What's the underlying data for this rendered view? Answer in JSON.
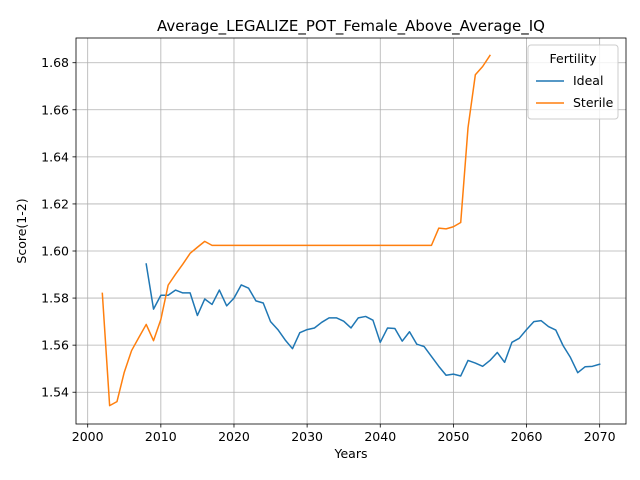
{
  "chart_data": {
    "type": "line",
    "title": "Average_LEGALIZE_POT_Female_Above_Average_IQ",
    "xlabel": "Years",
    "ylabel": "Score(1-2)",
    "xlim": [
      1998.4,
      2073.6
    ],
    "ylim": [
      1.5265,
      1.6905
    ],
    "xticks": [
      2000,
      2010,
      2020,
      2030,
      2040,
      2050,
      2060,
      2070
    ],
    "yticks": [
      1.54,
      1.56,
      1.58,
      1.6,
      1.62,
      1.64,
      1.66,
      1.68
    ],
    "ytick_labels": [
      "1.54",
      "1.56",
      "1.58",
      "1.60",
      "1.62",
      "1.64",
      "1.66",
      "1.68"
    ],
    "grid": true,
    "legend": {
      "title": "Fertility",
      "position": "top-right"
    },
    "series": [
      {
        "name": "Ideal",
        "color": "#1f77b4",
        "x": [
          2008,
          2009,
          2010,
          2011,
          2012,
          2013,
          2014,
          2015,
          2016,
          2017,
          2018,
          2019,
          2020,
          2021,
          2022,
          2023,
          2024,
          2025,
          2026,
          2027,
          2028,
          2029,
          2030,
          2031,
          2032,
          2033,
          2034,
          2035,
          2036,
          2037,
          2038,
          2039,
          2040,
          2041,
          2042,
          2043,
          2044,
          2045,
          2046,
          2047,
          2048,
          2049,
          2050,
          2051,
          2052,
          2053,
          2054,
          2055,
          2056,
          2057,
          2058,
          2059,
          2060,
          2061,
          2062,
          2063,
          2064,
          2065,
          2066,
          2067,
          2068,
          2069,
          2070
        ],
        "y": [
          1.5945,
          1.5753,
          1.5812,
          1.5812,
          1.5834,
          1.5822,
          1.5822,
          1.5726,
          1.5796,
          1.5773,
          1.5834,
          1.5767,
          1.58,
          1.5856,
          1.5842,
          1.5788,
          1.5779,
          1.57,
          1.5666,
          1.5622,
          1.5585,
          1.5653,
          1.5666,
          1.5673,
          1.5697,
          1.5716,
          1.5716,
          1.5702,
          1.5673,
          1.5716,
          1.5722,
          1.5706,
          1.5612,
          1.5673,
          1.5671,
          1.5617,
          1.5657,
          1.5604,
          1.5594,
          1.5552,
          1.551,
          1.5472,
          1.5477,
          1.5469,
          1.5535,
          1.5524,
          1.551,
          1.5535,
          1.5569,
          1.5527,
          1.5612,
          1.5629,
          1.5666,
          1.57,
          1.5704,
          1.5679,
          1.5664,
          1.5598,
          1.5548,
          1.5483,
          1.5508,
          1.551,
          1.5519
        ]
      },
      {
        "name": "Sterile",
        "color": "#ff7f0e",
        "x": [
          2002,
          2003,
          2004,
          2005,
          2006,
          2007,
          2008,
          2009,
          2010,
          2011,
          2012,
          2013,
          2014,
          2015,
          2016,
          2017,
          2018,
          2019,
          2020,
          2021,
          2022,
          2023,
          2024,
          2025,
          2026,
          2027,
          2028,
          2029,
          2030,
          2031,
          2032,
          2033,
          2034,
          2035,
          2036,
          2037,
          2038,
          2039,
          2040,
          2041,
          2042,
          2043,
          2044,
          2045,
          2046,
          2047,
          2048,
          2049,
          2050,
          2051,
          2052,
          2053,
          2054,
          2055
        ],
        "y": [
          1.582,
          1.5343,
          1.536,
          1.5485,
          1.5577,
          1.5633,
          1.5688,
          1.5619,
          1.5709,
          1.5855,
          1.5901,
          1.5944,
          1.599,
          1.6016,
          1.6041,
          1.6024,
          1.6024,
          1.6024,
          1.6024,
          1.6024,
          1.6024,
          1.6024,
          1.6024,
          1.6024,
          1.6024,
          1.6024,
          1.6024,
          1.6024,
          1.6024,
          1.6024,
          1.6024,
          1.6024,
          1.6024,
          1.6024,
          1.6024,
          1.6024,
          1.6024,
          1.6024,
          1.6024,
          1.6024,
          1.6024,
          1.6024,
          1.6024,
          1.6024,
          1.6024,
          1.6024,
          1.6097,
          1.6094,
          1.6103,
          1.6121,
          1.6524,
          1.6749,
          1.6784,
          1.6831
        ]
      }
    ]
  }
}
